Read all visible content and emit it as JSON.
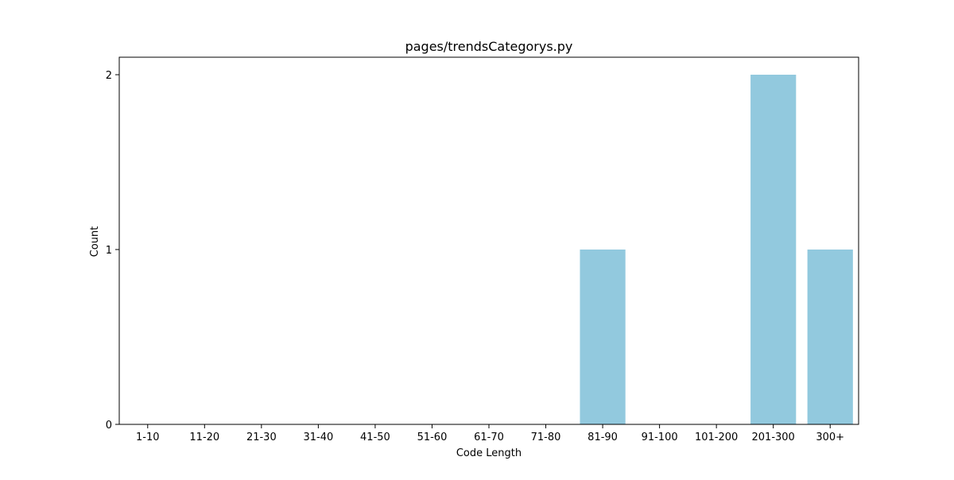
{
  "chart_data": {
    "type": "bar",
    "title": "pages/trendsCategorys.py",
    "xlabel": "Code Length",
    "ylabel": "Count",
    "categories": [
      "1-10",
      "11-20",
      "21-30",
      "31-40",
      "41-50",
      "51-60",
      "61-70",
      "71-80",
      "81-90",
      "91-100",
      "101-200",
      "201-300",
      "300+"
    ],
    "values": [
      0,
      0,
      0,
      0,
      0,
      0,
      0,
      0,
      1,
      0,
      0,
      2,
      1
    ],
    "yticks": [
      0,
      1,
      2
    ],
    "ylim": [
      0,
      2.1
    ],
    "bar_color": "#92c9de",
    "grid": false
  }
}
